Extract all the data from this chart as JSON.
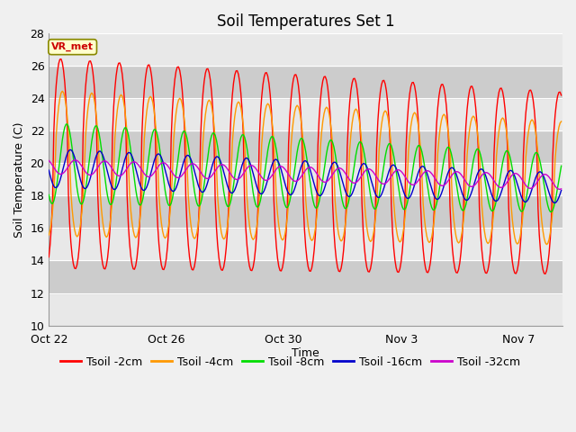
{
  "title": "Soil Temperatures Set 1",
  "xlabel": "Time",
  "ylabel": "Soil Temperature (C)",
  "ylim": [
    10,
    28
  ],
  "yticks": [
    10,
    12,
    14,
    16,
    18,
    20,
    22,
    24,
    26,
    28
  ],
  "xlim_days": [
    0,
    17.5
  ],
  "x_tick_labels": [
    "Oct 22",
    "Oct 26",
    "Oct 30",
    "Nov 3",
    "Nov 7"
  ],
  "x_tick_positions": [
    0,
    4,
    8,
    12,
    16
  ],
  "legend_labels": [
    "Tsoil -2cm",
    "Tsoil -4cm",
    "Tsoil -8cm",
    "Tsoil -16cm",
    "Tsoil -32cm"
  ],
  "legend_colors": [
    "#ff0000",
    "#ff9900",
    "#00dd00",
    "#0000cc",
    "#cc00cc"
  ],
  "annotation_text": "VR_met",
  "annotation_color": "#cc0000",
  "annotation_bg": "#ffffcc",
  "annotation_border": "#888800",
  "fig_bg": "#f0f0f0",
  "plot_bg": "#e0e0e0",
  "white_band_color": "#d0d0d0",
  "title_fontsize": 12,
  "label_fontsize": 9,
  "tick_fontsize": 9,
  "legend_fontsize": 9
}
